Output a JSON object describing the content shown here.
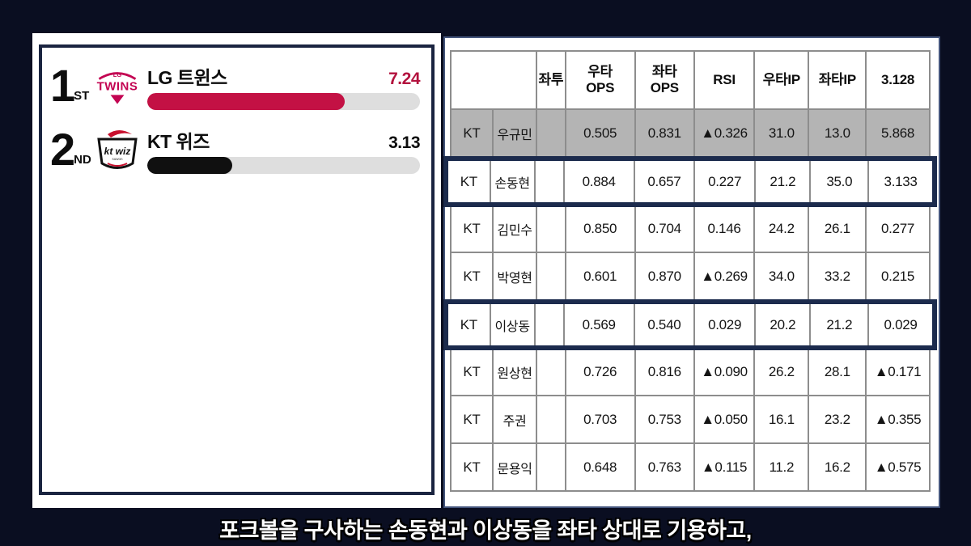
{
  "accent_colors": {
    "lg_crimson": "#c31144",
    "kt_black": "#101010",
    "highlight_navy": "#1c2b4d",
    "gray_row": "#b4b4b4"
  },
  "ranking_panel": {
    "items": [
      {
        "rank": "1",
        "rank_suffix": "ST",
        "team": "LG 트윈스",
        "value": "7.24",
        "bar_pct": 72.4,
        "bar_color": "#c31144",
        "value_color": "#b3123e",
        "logo": "lg"
      },
      {
        "rank": "2",
        "rank_suffix": "ND",
        "team": "KT 위즈",
        "value": "3.13",
        "bar_pct": 31.3,
        "bar_color": "#101010",
        "value_color": "#0d0d0d",
        "logo": "kt"
      }
    ]
  },
  "stats_table": {
    "headers": [
      "",
      "좌투",
      "우타\nOPS",
      "좌타\nOPS",
      "RSI",
      "우타IP",
      "좌타IP",
      "3.128"
    ],
    "rows": [
      {
        "gray": true,
        "highlight": false,
        "cells": [
          "KT",
          "우규민",
          "",
          "0.505",
          "0.831",
          "▲0.326",
          "31.0",
          "13.0",
          "5.868"
        ]
      },
      {
        "gray": false,
        "highlight": true,
        "cells": [
          "KT",
          "손동현",
          "",
          "0.884",
          "0.657",
          "0.227",
          "21.2",
          "35.0",
          "3.133"
        ]
      },
      {
        "gray": false,
        "highlight": false,
        "cells": [
          "KT",
          "김민수",
          "",
          "0.850",
          "0.704",
          "0.146",
          "24.2",
          "26.1",
          "0.277"
        ]
      },
      {
        "gray": false,
        "highlight": false,
        "cells": [
          "KT",
          "박영현",
          "",
          "0.601",
          "0.870",
          "▲0.269",
          "34.0",
          "33.2",
          "0.215"
        ]
      },
      {
        "gray": false,
        "highlight": true,
        "cells": [
          "KT",
          "이상동",
          "",
          "0.569",
          "0.540",
          "0.029",
          "20.2",
          "21.2",
          "0.029"
        ]
      },
      {
        "gray": false,
        "highlight": false,
        "cells": [
          "KT",
          "원상현",
          "",
          "0.726",
          "0.816",
          "▲0.090",
          "26.2",
          "28.1",
          "▲0.171"
        ]
      },
      {
        "gray": false,
        "highlight": false,
        "cells": [
          "KT",
          "주권",
          "",
          "0.703",
          "0.753",
          "▲0.050",
          "16.1",
          "23.2",
          "▲0.355"
        ]
      },
      {
        "gray": false,
        "highlight": false,
        "cells": [
          "KT",
          "문용익",
          "",
          "0.648",
          "0.763",
          "▲0.115",
          "11.2",
          "16.2",
          "▲0.575"
        ]
      }
    ]
  },
  "caption": "포크볼을 구사하는 손동현과 이상동을 좌타 상대로 기용하고,",
  "chart_data": [
    {
      "type": "bar",
      "orientation": "horizontal",
      "categories": [
        "LG 트윈스",
        "KT 위즈"
      ],
      "values": [
        7.24,
        3.13
      ],
      "value_labels": [
        "7.24",
        "3.13"
      ],
      "rank_labels": [
        "1ST",
        "2ND"
      ],
      "colors": [
        "#c31144",
        "#101010"
      ],
      "xlim": [
        0,
        10
      ],
      "title": "",
      "xlabel": "",
      "ylabel": ""
    },
    {
      "type": "table",
      "columns": [
        "",
        "",
        "좌투",
        "우타 OPS",
        "좌타 OPS",
        "RSI",
        "우타IP",
        "좌타IP",
        "3.128"
      ],
      "rows": [
        [
          "KT",
          "우규민",
          "",
          "0.505",
          "0.831",
          "▲0.326",
          "31.0",
          "13.0",
          "5.868"
        ],
        [
          "KT",
          "손동현",
          "",
          "0.884",
          "0.657",
          "0.227",
          "21.2",
          "35.0",
          "3.133"
        ],
        [
          "KT",
          "김민수",
          "",
          "0.850",
          "0.704",
          "0.146",
          "24.2",
          "26.1",
          "0.277"
        ],
        [
          "KT",
          "박영현",
          "",
          "0.601",
          "0.870",
          "▲0.269",
          "34.0",
          "33.2",
          "0.215"
        ],
        [
          "KT",
          "이상동",
          "",
          "0.569",
          "0.540",
          "0.029",
          "20.2",
          "21.2",
          "0.029"
        ],
        [
          "KT",
          "원상현",
          "",
          "0.726",
          "0.816",
          "▲0.090",
          "26.2",
          "28.1",
          "▲0.171"
        ],
        [
          "KT",
          "주권",
          "",
          "0.703",
          "0.753",
          "▲0.050",
          "16.1",
          "23.2",
          "▲0.355"
        ],
        [
          "KT",
          "문용익",
          "",
          "0.648",
          "0.763",
          "▲0.115",
          "11.2",
          "16.2",
          "▲0.575"
        ]
      ],
      "gray_rows": [
        "우규민"
      ],
      "highlighted_rows": [
        "손동현",
        "이상동"
      ]
    }
  ]
}
